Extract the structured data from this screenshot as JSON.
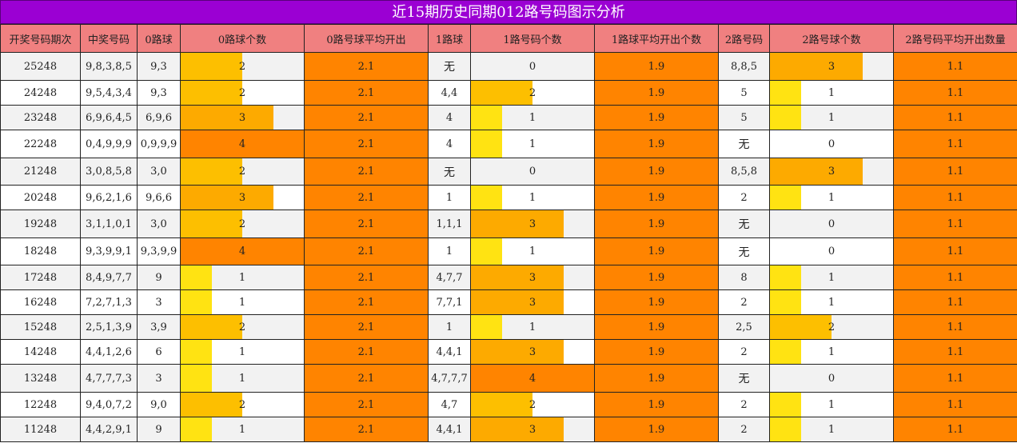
{
  "title": "近15期历史同期012路号码图示分析",
  "colors": {
    "title_bg": "#9b00d3",
    "header_bg": "#f08080",
    "avg_bg": "#ff8400",
    "bar_1": "#ffe312",
    "bar_2": "#fdbf00",
    "bar_3": "#fdaa00",
    "bar_4": "#ff8400"
  },
  "chart_data": {
    "type": "table",
    "columns": [
      "开奖号码期次",
      "中奖号码",
      "0路球",
      "0路球个数",
      "0路号球平均开出",
      "1路球",
      "1路号码个数",
      "1路球平均开出个数",
      "2路号码",
      "2路号球个数",
      "2路号码平均开出数量"
    ],
    "bar_max": 4,
    "rows": [
      {
        "period": "25248",
        "numbers": "9,8,3,8,5",
        "r0": "9,3",
        "c0": 2,
        "a0": "2.1",
        "r1": "无",
        "c1": 0,
        "a1": "1.9",
        "r2": "8,8,5",
        "c2": 3,
        "a2": "1.1"
      },
      {
        "period": "24248",
        "numbers": "9,5,4,3,4",
        "r0": "9,3",
        "c0": 2,
        "a0": "2.1",
        "r1": "4,4",
        "c1": 2,
        "a1": "1.9",
        "r2": "5",
        "c2": 1,
        "a2": "1.1"
      },
      {
        "period": "23248",
        "numbers": "6,9,6,4,5",
        "r0": "6,9,6",
        "c0": 3,
        "a0": "2.1",
        "r1": "4",
        "c1": 1,
        "a1": "1.9",
        "r2": "5",
        "c2": 1,
        "a2": "1.1"
      },
      {
        "period": "22248",
        "numbers": "0,4,9,9,9",
        "r0": "0,9,9,9",
        "c0": 4,
        "a0": "2.1",
        "r1": "4",
        "c1": 1,
        "a1": "1.9",
        "r2": "无",
        "c2": 0,
        "a2": "1.1"
      },
      {
        "period": "21248",
        "numbers": "3,0,8,5,8",
        "r0": "3,0",
        "c0": 2,
        "a0": "2.1",
        "r1": "无",
        "c1": 0,
        "a1": "1.9",
        "r2": "8,5,8",
        "c2": 3,
        "a2": "1.1"
      },
      {
        "period": "20248",
        "numbers": "9,6,2,1,6",
        "r0": "9,6,6",
        "c0": 3,
        "a0": "2.1",
        "r1": "1",
        "c1": 1,
        "a1": "1.9",
        "r2": "2",
        "c2": 1,
        "a2": "1.1"
      },
      {
        "period": "19248",
        "numbers": "3,1,1,0,1",
        "r0": "3,0",
        "c0": 2,
        "a0": "2.1",
        "r1": "1,1,1",
        "c1": 3,
        "a1": "1.9",
        "r2": "无",
        "c2": 0,
        "a2": "1.1"
      },
      {
        "period": "18248",
        "numbers": "9,3,9,9,1",
        "r0": "9,3,9,9",
        "c0": 4,
        "a0": "2.1",
        "r1": "1",
        "c1": 1,
        "a1": "1.9",
        "r2": "无",
        "c2": 0,
        "a2": "1.1"
      },
      {
        "period": "17248",
        "numbers": "8,4,9,7,7",
        "r0": "9",
        "c0": 1,
        "a0": "2.1",
        "r1": "4,7,7",
        "c1": 3,
        "a1": "1.9",
        "r2": "8",
        "c2": 1,
        "a2": "1.1"
      },
      {
        "period": "16248",
        "numbers": "7,2,7,1,3",
        "r0": "3",
        "c0": 1,
        "a0": "2.1",
        "r1": "7,7,1",
        "c1": 3,
        "a1": "1.9",
        "r2": "2",
        "c2": 1,
        "a2": "1.1"
      },
      {
        "period": "15248",
        "numbers": "2,5,1,3,9",
        "r0": "3,9",
        "c0": 2,
        "a0": "2.1",
        "r1": "1",
        "c1": 1,
        "a1": "1.9",
        "r2": "2,5",
        "c2": 2,
        "a2": "1.1"
      },
      {
        "period": "14248",
        "numbers": "4,4,1,2,6",
        "r0": "6",
        "c0": 1,
        "a0": "2.1",
        "r1": "4,4,1",
        "c1": 3,
        "a1": "1.9",
        "r2": "2",
        "c2": 1,
        "a2": "1.1"
      },
      {
        "period": "13248",
        "numbers": "4,7,7,7,3",
        "r0": "3",
        "c0": 1,
        "a0": "2.1",
        "r1": "4,7,7,7",
        "c1": 4,
        "a1": "1.9",
        "r2": "无",
        "c2": 0,
        "a2": "1.1"
      },
      {
        "period": "12248",
        "numbers": "9,4,0,7,2",
        "r0": "9,0",
        "c0": 2,
        "a0": "2.1",
        "r1": "4,7",
        "c1": 2,
        "a1": "1.9",
        "r2": "2",
        "c2": 1,
        "a2": "1.1"
      },
      {
        "period": "11248",
        "numbers": "4,4,2,9,1",
        "r0": "9",
        "c0": 1,
        "a0": "2.1",
        "r1": "4,4,1",
        "c1": 3,
        "a1": "1.9",
        "r2": "2",
        "c2": 1,
        "a2": "1.1"
      }
    ]
  }
}
